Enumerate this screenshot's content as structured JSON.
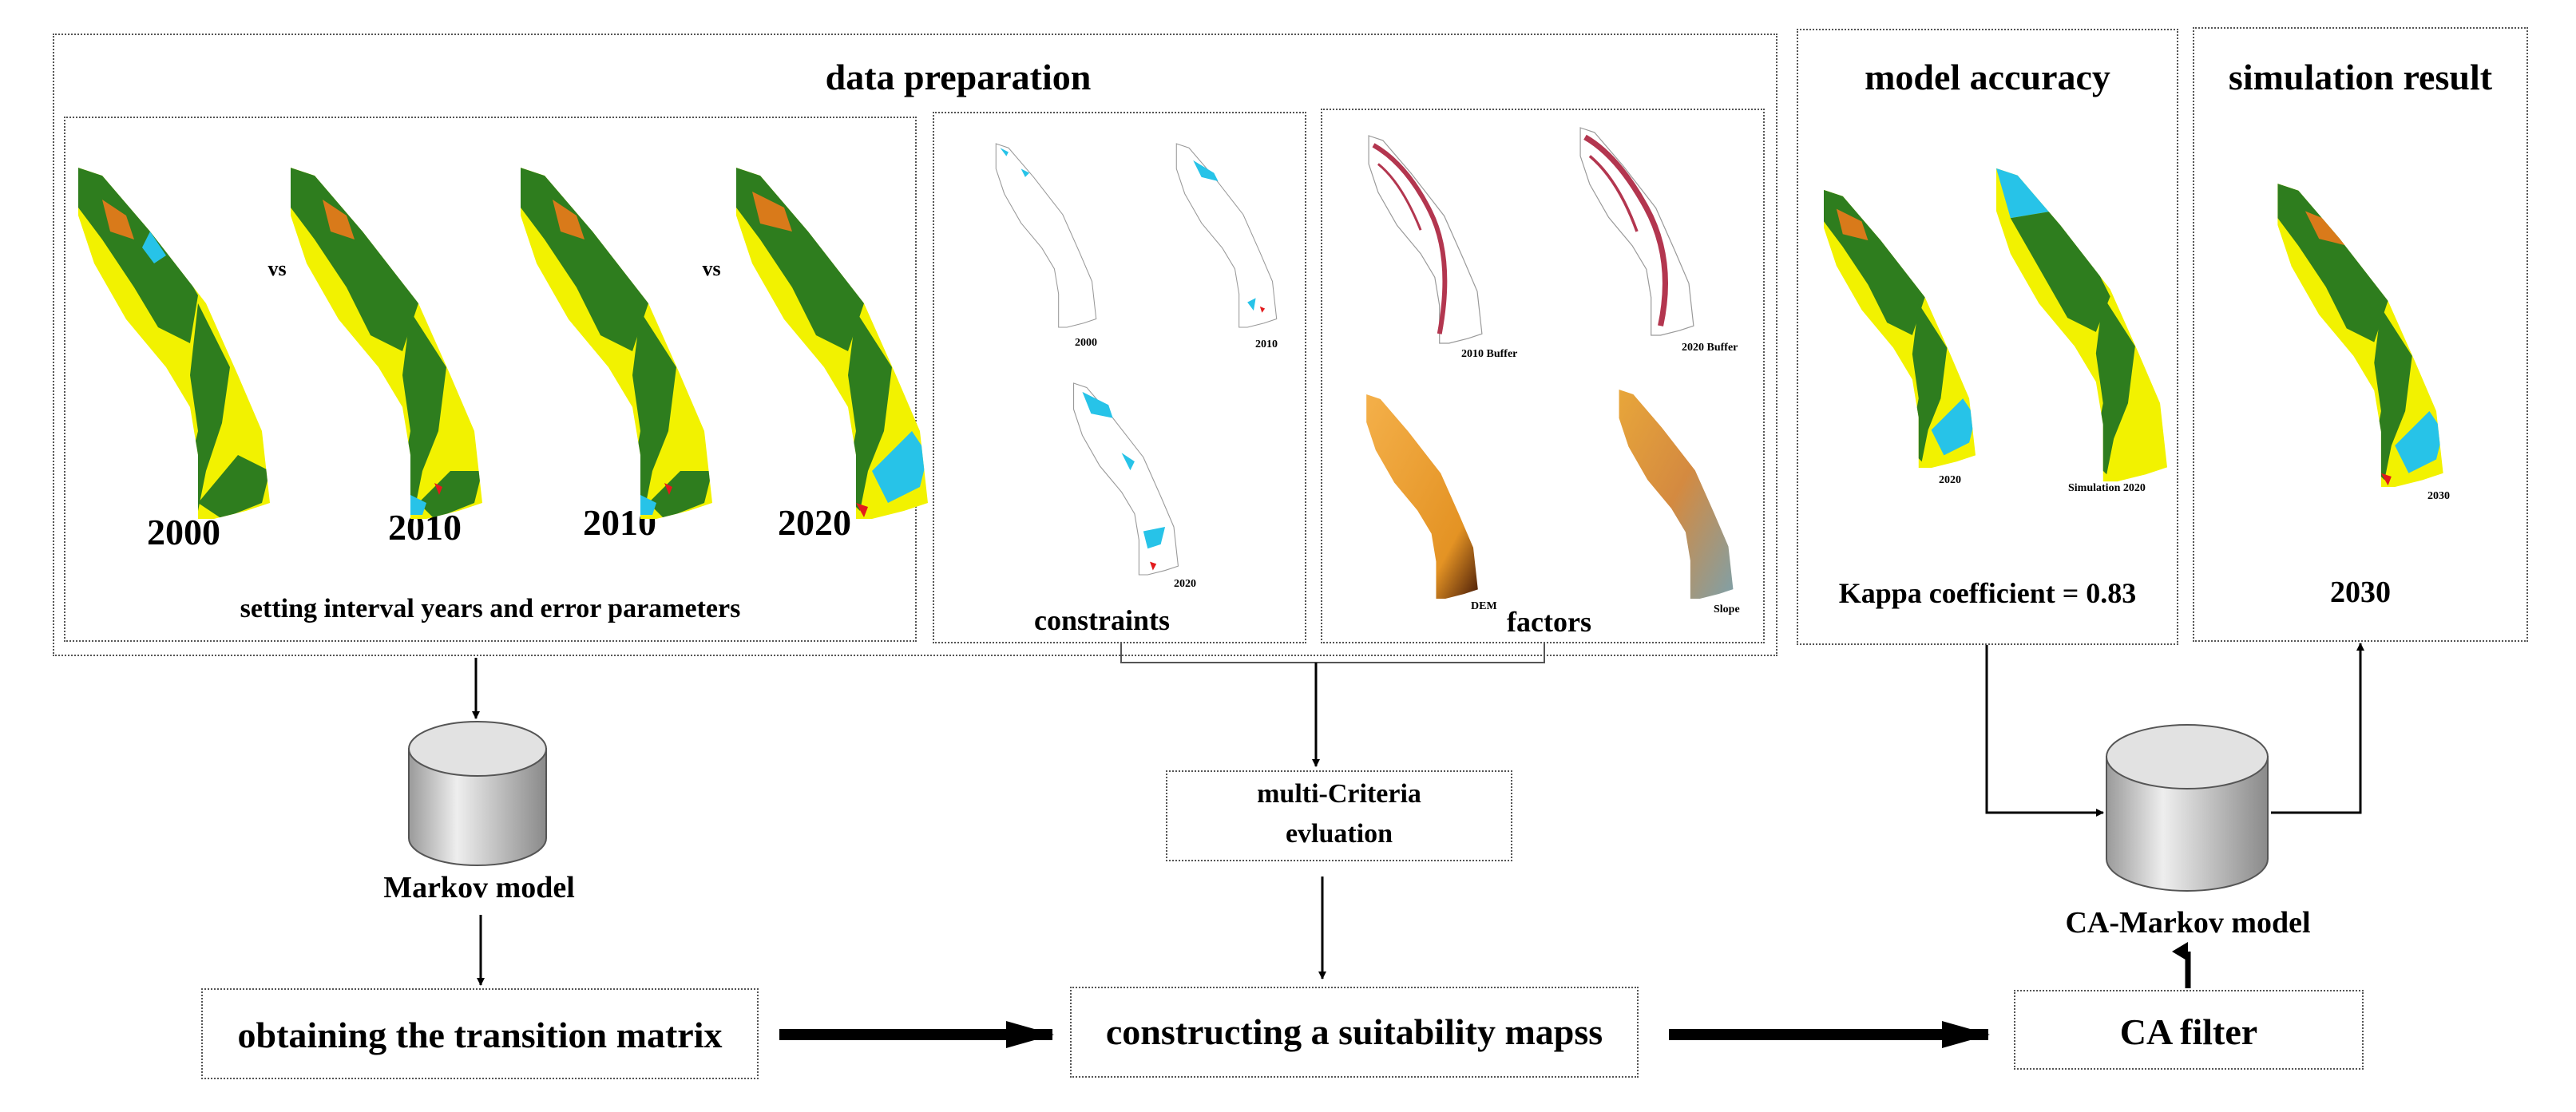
{
  "data_preparation": {
    "title": "data preparation",
    "interval": {
      "years": [
        "2000",
        "2010",
        "2010",
        "2020"
      ],
      "vs": "vs",
      "map_captions": [
        "2000",
        "2010",
        "2010",
        "2020"
      ],
      "caption": "setting interval years and error parameters"
    },
    "constraints": {
      "label": "constraints",
      "map_captions": [
        "2000",
        "2010",
        "2020"
      ]
    },
    "factors": {
      "label": "factors",
      "map_captions": [
        "2010 Buffer",
        "2020 Buffer",
        "DEM",
        "Slope"
      ]
    }
  },
  "model_accuracy": {
    "title": "model accuracy",
    "map_captions": [
      "2020",
      "Simulation 2020"
    ],
    "kappa": "Kappa coefficient  = 0.83"
  },
  "simulation_result": {
    "title": "simulation result",
    "map_caption": "2030",
    "year": "2030"
  },
  "markov_model": "Markov model",
  "transition_matrix": "obtaining the transition matrix",
  "mce": {
    "line1": "multi-Criteria",
    "line2": "evluation"
  },
  "suitability": "constructing a suitability mapss",
  "ca_filter": "CA filter",
  "ca_markov": "CA-Markov model",
  "colors": {
    "land_yellow": "#f2f200",
    "forest_green": "#2e7d1e",
    "water_cyan": "#27c3e8",
    "urban_red": "#e31a1c",
    "buffer_red": "#b3364f",
    "dem_orange": "#f0a02a"
  }
}
